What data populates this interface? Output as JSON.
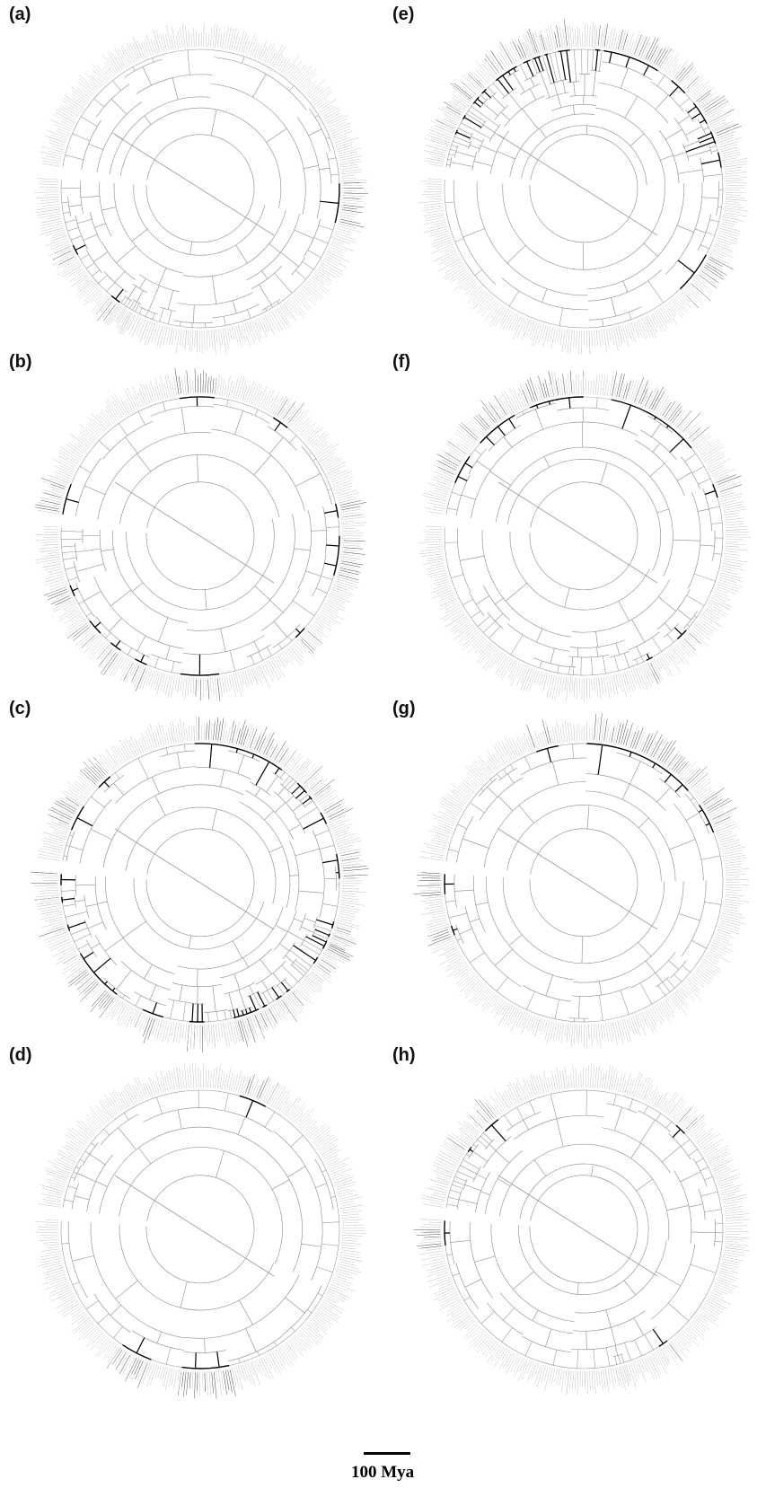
{
  "figure": {
    "panels": [
      {
        "id": "a",
        "label": "(a)",
        "highlight": "sparse",
        "seed": 11
      },
      {
        "id": "b",
        "label": "(b)",
        "highlight": "medium",
        "seed": 23
      },
      {
        "id": "c",
        "label": "(c)",
        "highlight": "dense",
        "seed": 37
      },
      {
        "id": "d",
        "label": "(d)",
        "highlight": "sparse",
        "seed": 41
      },
      {
        "id": "e",
        "label": "(e)",
        "highlight": "top-heavy",
        "seed": 53
      },
      {
        "id": "f",
        "label": "(f)",
        "highlight": "top-heavy",
        "seed": 67
      },
      {
        "id": "g",
        "label": "(g)",
        "highlight": "top-only",
        "seed": 79
      },
      {
        "id": "h",
        "label": "(h)",
        "highlight": "sparse",
        "seed": 83
      }
    ],
    "scale_bar": {
      "label": "100 Mya"
    },
    "colors": {
      "branch": "#9a9a9a",
      "highlight": "#000000",
      "tip_label": "#c4c4c4"
    }
  }
}
